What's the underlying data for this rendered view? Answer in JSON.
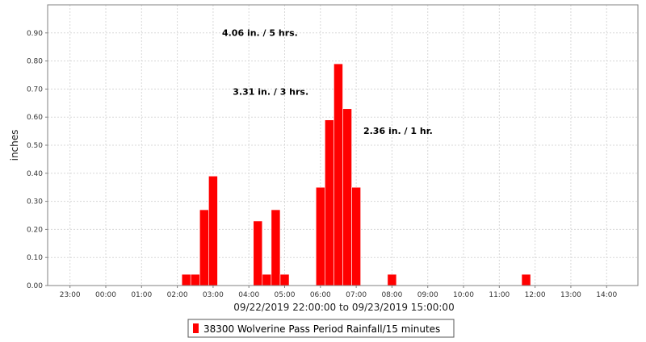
{
  "chart_data": {
    "type": "bar",
    "title": "",
    "xlabel": "09/22/2019 22:00:00 to 09/23/2019 15:00:00",
    "ylabel": "inches",
    "x_range_hours": [
      22.375,
      38.875
    ],
    "ylim": [
      0,
      1.0
    ],
    "yticks": [
      0.0,
      0.1,
      0.2,
      0.3,
      0.4,
      0.5,
      0.6,
      0.7,
      0.8,
      0.9
    ],
    "ytick_labels": [
      "0.00",
      "0.10",
      "0.20",
      "0.30",
      "0.40",
      "0.50",
      "0.60",
      "0.70",
      "0.80",
      "0.90"
    ],
    "xticks": [
      23,
      24,
      25,
      26,
      27,
      28,
      29,
      30,
      31,
      32,
      33,
      34,
      35,
      36,
      37,
      38
    ],
    "xtick_labels": [
      "23:00",
      "00:00",
      "01:00",
      "02:00",
      "03:00",
      "04:00",
      "05:00",
      "06:00",
      "07:00",
      "08:00",
      "09:00",
      "10:00",
      "11:00",
      "12:00",
      "13:00",
      "14:00"
    ],
    "grid": true,
    "legend_position": "bottom-center",
    "series": [
      {
        "name": "38300 Wolverine Pass Period Rainfall/15 minutes",
        "color": "#ff0000",
        "bar_width_hours": 0.25,
        "points": [
          {
            "time": "02:15",
            "x": 26.25,
            "y": 0.04
          },
          {
            "time": "02:30",
            "x": 26.5,
            "y": 0.04
          },
          {
            "time": "02:45",
            "x": 26.75,
            "y": 0.27
          },
          {
            "time": "03:00",
            "x": 27.0,
            "y": 0.39
          },
          {
            "time": "04:15",
            "x": 28.25,
            "y": 0.23
          },
          {
            "time": "04:30",
            "x": 28.5,
            "y": 0.04
          },
          {
            "time": "04:45",
            "x": 28.75,
            "y": 0.27
          },
          {
            "time": "05:00",
            "x": 29.0,
            "y": 0.04
          },
          {
            "time": "06:00",
            "x": 30.0,
            "y": 0.35
          },
          {
            "time": "06:15",
            "x": 30.25,
            "y": 0.59
          },
          {
            "time": "06:30",
            "x": 30.5,
            "y": 0.79
          },
          {
            "time": "06:45",
            "x": 30.75,
            "y": 0.63
          },
          {
            "time": "07:00",
            "x": 31.0,
            "y": 0.35
          },
          {
            "time": "08:00",
            "x": 32.0,
            "y": 0.04
          },
          {
            "time": "11:45",
            "x": 35.75,
            "y": 0.04
          }
        ]
      }
    ],
    "annotations": [
      {
        "text": "4.06 in. / 5 hrs.",
        "x": 27.25,
        "y": 0.89
      },
      {
        "text": "3.31 in. / 3 hrs.",
        "x": 27.55,
        "y": 0.68
      },
      {
        "text": "2.36 in. / 1 hr.",
        "x": 31.2,
        "y": 0.54
      }
    ]
  }
}
